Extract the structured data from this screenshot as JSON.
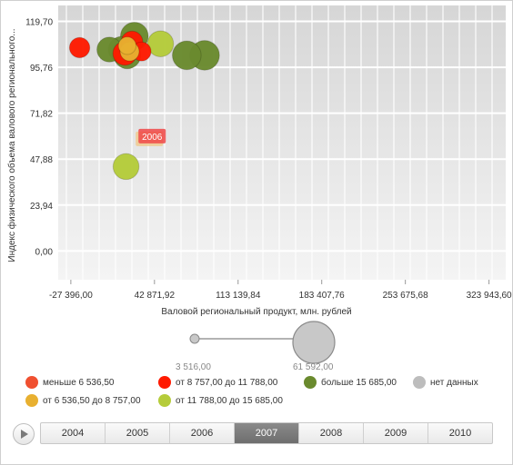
{
  "chart_data": {
    "type": "scatter",
    "subtype": "bubble",
    "xlabel": "Валовой региональный продукт, млн. рублей",
    "ylabel": "Индекс физического объема валового регионального...",
    "x_ticks": [
      "-27 396,00",
      "42 871,92",
      "113 139,84",
      "183 407,76",
      "253 675,68",
      "323 943,60"
    ],
    "x_tick_values": [
      -27396,
      42871.92,
      113139.84,
      183407.76,
      253675.68,
      323943.6
    ],
    "y_ticks": [
      "0,00",
      "23,94",
      "47,88",
      "71,82",
      "95,76",
      "119,70"
    ],
    "y_tick_values": [
      0,
      23.94,
      47.88,
      71.82,
      95.76,
      119.7
    ],
    "xlim": [
      -38000,
      338000
    ],
    "ylim": [
      -15,
      128
    ],
    "grid": true,
    "points": [
      {
        "x": 26000,
        "y": 112,
        "size": 15000,
        "category": "больше 15 685,00"
      },
      {
        "x": 15000,
        "y": 105,
        "size": 13000,
        "category": "больше 15 685,00"
      },
      {
        "x": 5000,
        "y": 105,
        "size": 12000,
        "category": "больше 15 685,00"
      },
      {
        "x": 20000,
        "y": 102,
        "size": 14000,
        "category": "больше 15 685,00"
      },
      {
        "x": 70000,
        "y": 102,
        "size": 16000,
        "category": "больше 15 685,00"
      },
      {
        "x": 85000,
        "y": 102,
        "size": 17000,
        "category": "больше 15 685,00"
      },
      {
        "x": -20000,
        "y": 106,
        "size": 8000,
        "category": "от 8 757,00 до 11 788,00"
      },
      {
        "x": 18000,
        "y": 103,
        "size": 11000,
        "category": "от 8 757,00 до 11 788,00"
      },
      {
        "x": 24000,
        "y": 109,
        "size": 9000,
        "category": "от 8 757,00 до 11 788,00"
      },
      {
        "x": 32000,
        "y": 104,
        "size": 7000,
        "category": "от 8 757,00 до 11 788,00"
      },
      {
        "x": 48000,
        "y": 108,
        "size": 13000,
        "category": "от 11 788,00 до 15 685,00"
      },
      {
        "x": 22000,
        "y": 104,
        "size": 7000,
        "category": "от 6 536,50 до 8 757,00"
      },
      {
        "x": 20000,
        "y": 107,
        "size": 6000,
        "category": "от 6 536,50 до 8 757,00"
      },
      {
        "x": 19000,
        "y": 44,
        "size": 13000,
        "category": "от 11 788,00 до 15 685,00"
      }
    ],
    "annotation": "2006",
    "annotation_point": {
      "x": 34000,
      "y": 58
    }
  },
  "legend": {
    "items": [
      {
        "label": "меньше 6 536,50",
        "color": "#f05030"
      },
      {
        "label": "от 8 757,00 до 11 788,00",
        "color": "#ff1a00"
      },
      {
        "label": "больше 15 685,00",
        "color": "#6a8a2e"
      },
      {
        "label": "нет данных",
        "color": "#bdbdbd"
      },
      {
        "label": "от 6 536,50 до 8 757,00",
        "color": "#e8b030"
      },
      {
        "label": "от 11 788,00 до 15 685,00",
        "color": "#b5cc3a"
      }
    ],
    "size_min_label": "3 516,00",
    "size_max_label": "61 592,00"
  },
  "timeline": {
    "years": [
      "2004",
      "2005",
      "2006",
      "2007",
      "2008",
      "2009",
      "2010"
    ],
    "active_year": "2007"
  },
  "colors": {
    "меньше 6 536,50": "#f05030",
    "от 6 536,50 до 8 757,00": "#e8b030",
    "от 8 757,00 до 11 788,00": "#ff1a00",
    "от 11 788,00 до 15 685,00": "#b5cc3a",
    "больше 15 685,00": "#6a8a2e",
    "нет данных": "#bdbdbd"
  }
}
